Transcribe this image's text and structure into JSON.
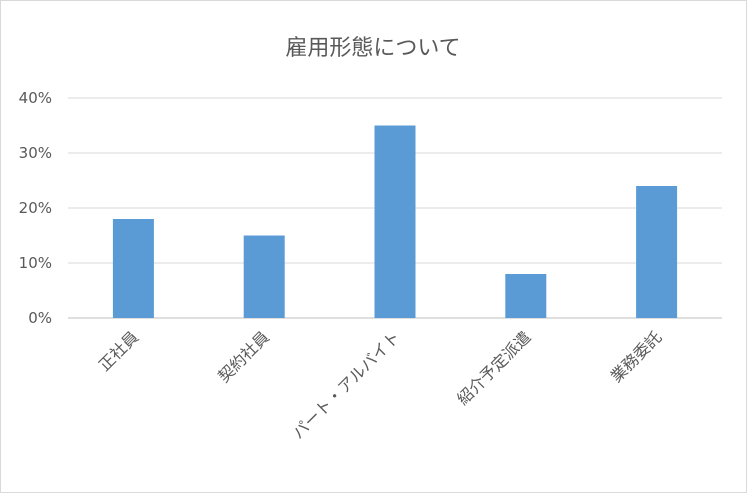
{
  "chart_data": {
    "type": "bar",
    "title": "雇用形態について",
    "xlabel": "",
    "ylabel": "",
    "categories": [
      "正社員",
      "契約社員",
      "パート・アルバイト",
      "紹介予定派遣",
      "業務委託"
    ],
    "values": [
      18,
      15,
      35,
      8,
      24
    ],
    "y_ticks": [
      "0%",
      "10%",
      "20%",
      "30%",
      "40%"
    ],
    "ylim": [
      0,
      40
    ],
    "grid": true,
    "legend": "none",
    "bar_color": "#5b9bd5",
    "grid_color": "#d9d9d9"
  }
}
